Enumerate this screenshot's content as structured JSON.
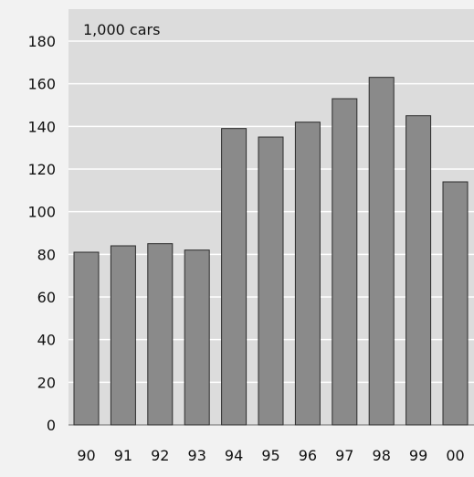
{
  "chart_data": {
    "type": "bar",
    "unit_label": "1,000 cars",
    "categories": [
      "90",
      "91",
      "92",
      "93",
      "94",
      "95",
      "96",
      "97",
      "98",
      "99",
      "00"
    ],
    "values": [
      81,
      84,
      85,
      82,
      139,
      135,
      142,
      153,
      163,
      145,
      114
    ],
    "yticks": [
      0,
      20,
      40,
      60,
      80,
      100,
      120,
      140,
      160,
      180
    ],
    "ylim": [
      0,
      180
    ],
    "grid": true,
    "colors": {
      "bar": "#8a8a8a",
      "bar_stroke": "#2b2b2b",
      "plot_bg": "#dcdcdc",
      "grid": "#ffffff",
      "page_bg": "#f2f2f2"
    }
  }
}
